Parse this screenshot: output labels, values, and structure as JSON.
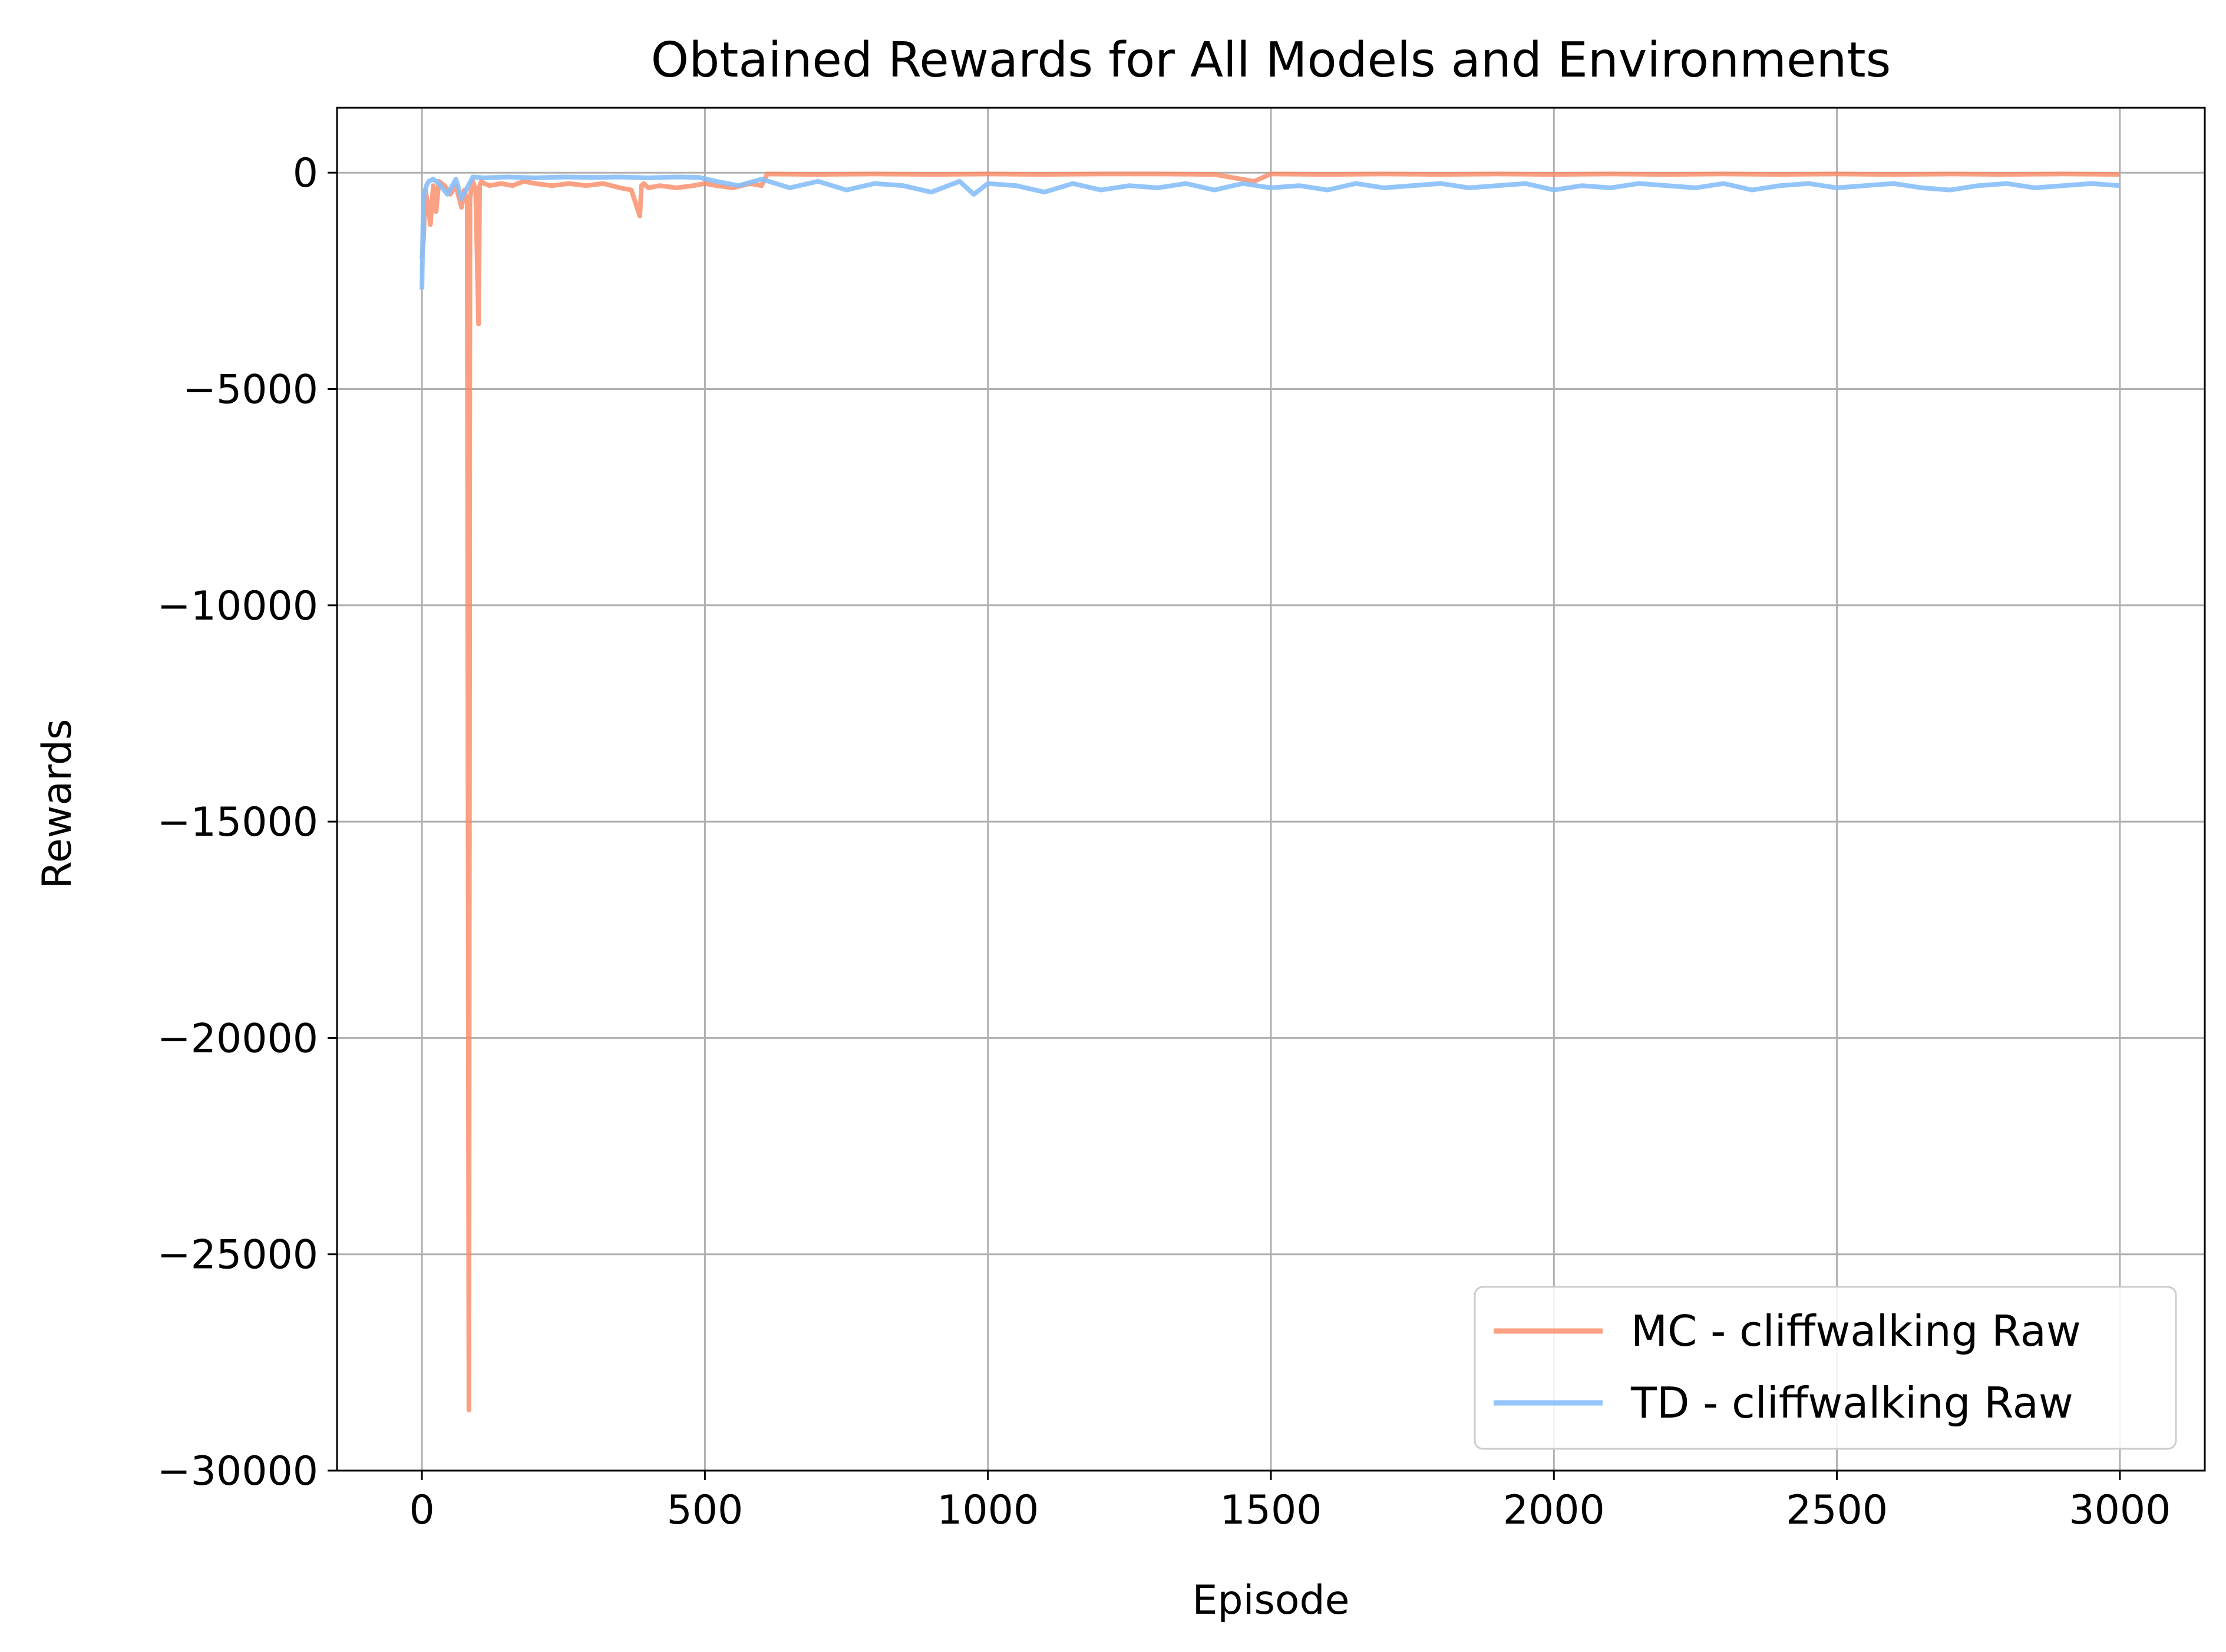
{
  "chart_data": {
    "type": "line",
    "title": "Obtained Rewards for All Models and Environments",
    "xlabel": "Episode",
    "ylabel": "Rewards",
    "xlim": [
      -150,
      3150
    ],
    "ylim": [
      -30000,
      1500
    ],
    "xticks": [
      0,
      500,
      1000,
      1500,
      2000,
      2500,
      3000
    ],
    "xtick_labels": [
      "0",
      "500",
      "1000",
      "1500",
      "2000",
      "2500",
      "3000"
    ],
    "yticks": [
      0,
      -5000,
      -10000,
      -15000,
      -20000,
      -25000,
      -30000
    ],
    "ytick_labels": [
      "0",
      "−5000",
      "−10000",
      "−15000",
      "−20000",
      "−25000",
      "−30000"
    ],
    "grid": true,
    "legend_position": "lower-right",
    "series": [
      {
        "name": "MC - cliffwalking Raw",
        "color": "#FA8A64",
        "alpha": 0.8,
        "x": [
          0,
          3,
          6,
          10,
          15,
          20,
          25,
          30,
          40,
          50,
          60,
          70,
          75,
          80,
          83,
          85,
          88,
          90,
          95,
          100,
          102,
          105,
          110,
          120,
          140,
          160,
          180,
          200,
          230,
          260,
          290,
          320,
          350,
          370,
          385,
          388,
          392,
          400,
          420,
          450,
          480,
          500,
          520,
          550,
          580,
          600,
          610,
          700,
          800,
          900,
          1000,
          1100,
          1200,
          1300,
          1400,
          1470,
          1500,
          1600,
          1700,
          1800,
          1900,
          2000,
          2100,
          2200,
          2300,
          2400,
          2500,
          2600,
          2700,
          2800,
          2900,
          3000
        ],
        "y": [
          -2000,
          -1500,
          -400,
          -700,
          -1200,
          -300,
          -900,
          -200,
          -300,
          -500,
          -300,
          -800,
          -400,
          -700,
          -28600,
          -600,
          -300,
          -200,
          -400,
          -3500,
          -300,
          -200,
          -250,
          -300,
          -250,
          -300,
          -200,
          -250,
          -300,
          -250,
          -300,
          -250,
          -350,
          -400,
          -1000,
          -300,
          -250,
          -350,
          -300,
          -350,
          -300,
          -250,
          -300,
          -350,
          -250,
          -300,
          -30,
          -40,
          -30,
          -40,
          -30,
          -40,
          -30,
          -30,
          -40,
          -200,
          -30,
          -40,
          -30,
          -40,
          -30,
          -40,
          -30,
          -40,
          -30,
          -40,
          -30,
          -40,
          -30,
          -40,
          -30,
          -40
        ]
      },
      {
        "name": "TD - cliffwalking Raw",
        "color": "#87BFFA",
        "alpha": 0.9,
        "x": [
          0,
          2,
          4,
          8,
          12,
          20,
          30,
          45,
          60,
          70,
          90,
          110,
          150,
          200,
          250,
          300,
          350,
          400,
          450,
          490,
          520,
          560,
          600,
          650,
          700,
          750,
          800,
          850,
          900,
          950,
          975,
          1000,
          1050,
          1100,
          1150,
          1200,
          1250,
          1300,
          1350,
          1400,
          1450,
          1500,
          1550,
          1600,
          1650,
          1700,
          1750,
          1800,
          1850,
          1900,
          1950,
          2000,
          2050,
          2100,
          2150,
          2200,
          2250,
          2300,
          2350,
          2400,
          2450,
          2500,
          2550,
          2600,
          2650,
          2700,
          2750,
          2800,
          2850,
          2900,
          2950,
          3000
        ],
        "y": [
          -2700,
          -1000,
          -500,
          -300,
          -200,
          -150,
          -250,
          -500,
          -150,
          -600,
          -100,
          -120,
          -100,
          -120,
          -100,
          -110,
          -100,
          -120,
          -100,
          -110,
          -200,
          -300,
          -150,
          -350,
          -200,
          -400,
          -250,
          -300,
          -450,
          -200,
          -500,
          -250,
          -300,
          -450,
          -250,
          -400,
          -300,
          -350,
          -250,
          -400,
          -250,
          -350,
          -300,
          -400,
          -250,
          -350,
          -300,
          -250,
          -350,
          -300,
          -250,
          -400,
          -300,
          -350,
          -250,
          -300,
          -350,
          -250,
          -400,
          -300,
          -250,
          -350,
          -300,
          -250,
          -350,
          -400,
          -300,
          -250,
          -350,
          -300,
          -250,
          -300
        ]
      }
    ]
  }
}
